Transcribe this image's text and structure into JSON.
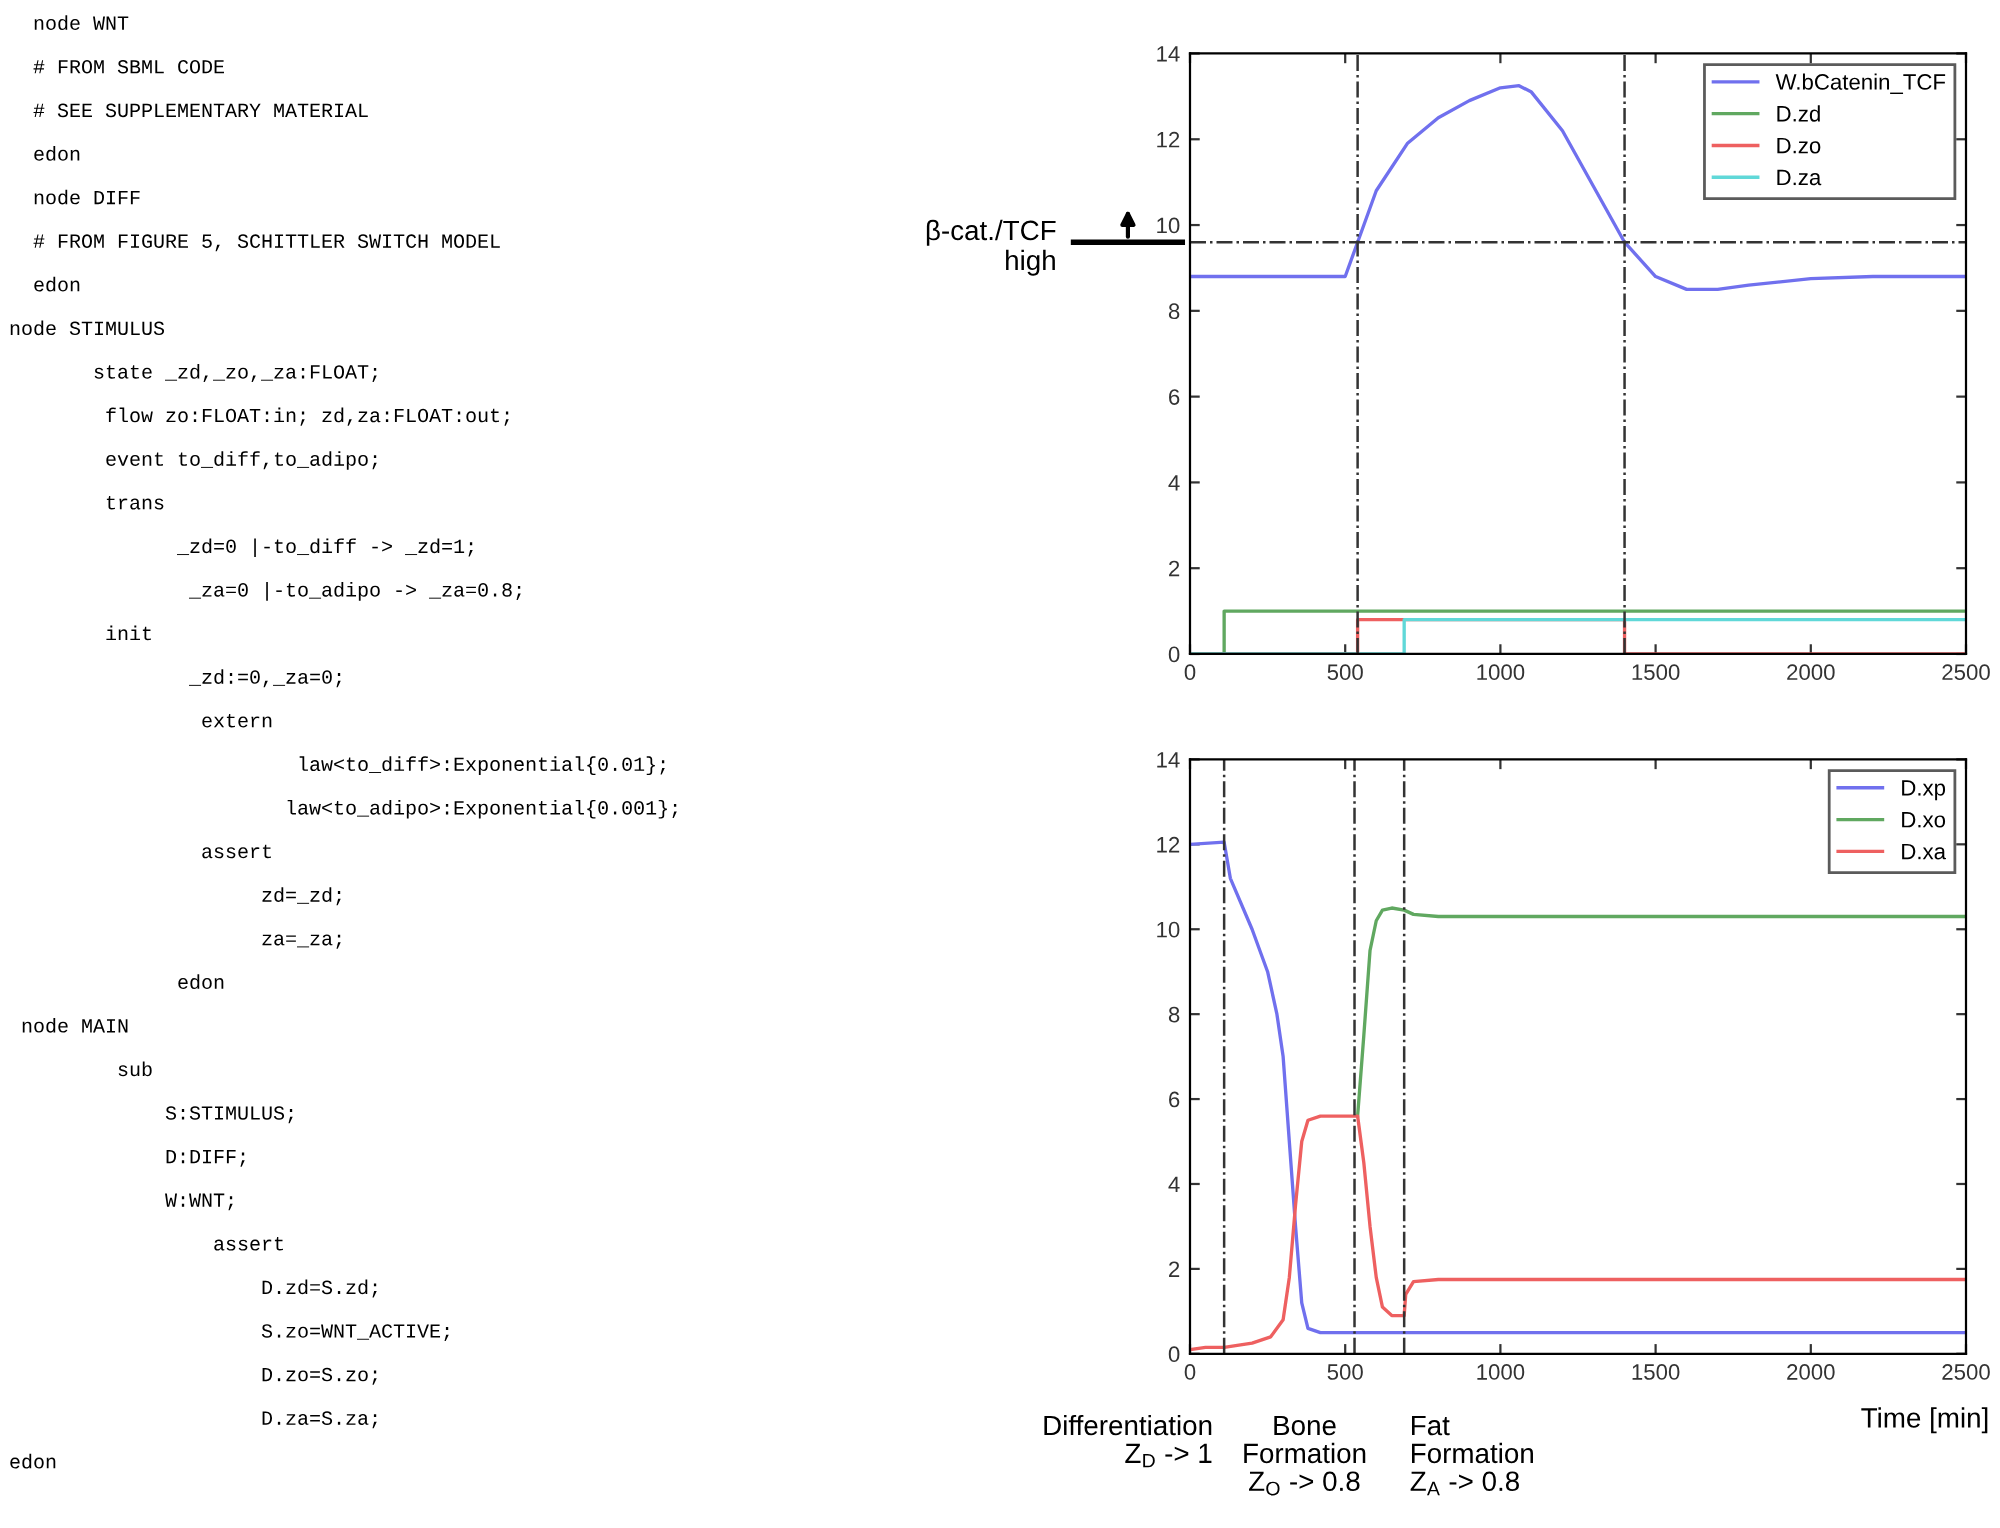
{
  "chart_data": [
    {
      "type": "other",
      "annotations": [
        "  node WNT",
        "  # FROM SBML CODE",
        "  # SEE SUPPLEMENTARY MATERIAL",
        "  edon",
        "  node DIFF",
        "  # FROM FIGURE 5, SCHITTLER SWITCH MODEL",
        "  edon",
        "node STIMULUS",
        "       state _zd,_zo,_za:FLOAT;",
        "        flow zo:FLOAT:in; zd,za:FLOAT:out;",
        "        event to_diff,to_adipo;",
        "        trans",
        "              _zd=0 |-to_diff -> _zd=1;",
        "               _za=0 |-to_adipo -> _za=0.8;",
        "        init",
        "               _zd:=0,_za=0;",
        "                extern",
        "                        law<to_diff>:Exponential{0.01};",
        "                       law<to_adipo>:Exponential{0.001};",
        "                assert",
        "                     zd=_zd;",
        "                     za=_za;",
        "              edon",
        " node MAIN",
        "         sub",
        "             S:STIMULUS;",
        "             D:DIFF;",
        "             W:WNT;",
        "                 assert",
        "                     D.zd=S.zd;",
        "                     S.zo=WNT_ACTIVE;",
        "                     D.zo=S.zo;",
        "                     D.za=S.za;",
        "edon"
      ]
    },
    {
      "type": "line",
      "xlim": [
        0,
        2500
      ],
      "ylim": [
        0,
        14
      ],
      "xticks": [
        0,
        500,
        1000,
        1500,
        2000,
        2500
      ],
      "yticks": [
        0,
        2,
        4,
        6,
        8,
        10,
        12,
        14
      ],
      "grid": false,
      "legend": "top right",
      "series": [
        {
          "name": "W.bCatenin_TCF",
          "color": "#7070ee",
          "x": [
            0,
            500,
            540,
            600,
            700,
            800,
            900,
            1000,
            1060,
            1100,
            1200,
            1300,
            1400,
            1500,
            1600,
            1700,
            1800,
            2000,
            2200,
            2500
          ],
          "values": [
            8.8,
            8.8,
            9.6,
            10.8,
            11.9,
            12.5,
            12.9,
            13.2,
            13.25,
            13.1,
            12.2,
            10.9,
            9.6,
            8.8,
            8.5,
            8.5,
            8.6,
            8.75,
            8.8,
            8.8
          ]
        },
        {
          "name": "D.zd",
          "color": "#60a860",
          "x": [
            0,
            110,
            110,
            2500
          ],
          "values": [
            0,
            0,
            1,
            1
          ]
        },
        {
          "name": "D.zo",
          "color": "#ee6060",
          "x": [
            0,
            540,
            540,
            1400,
            1400,
            2500
          ],
          "values": [
            0,
            0,
            0.8,
            0.8,
            0,
            0
          ]
        },
        {
          "name": "D.za",
          "color": "#60d8d8",
          "x": [
            0,
            690,
            690,
            2500
          ],
          "values": [
            0,
            0,
            0.8,
            0.8
          ]
        }
      ],
      "ref_lines": [
        {
          "axis": "y",
          "value": 9.6,
          "label": "β-cat./TCF\nhigh",
          "line_style": "dashdot"
        },
        {
          "axis": "x",
          "value": 540,
          "line_style": "dashdot"
        },
        {
          "axis": "x",
          "value": 1400,
          "line_style": "dashdot"
        }
      ]
    },
    {
      "type": "line",
      "xlim": [
        0,
        2500
      ],
      "ylim": [
        0,
        14
      ],
      "xticks": [
        0,
        500,
        1000,
        1500,
        2000,
        2500
      ],
      "yticks": [
        0,
        2,
        4,
        6,
        8,
        10,
        12,
        14
      ],
      "grid": false,
      "legend": "top right",
      "xlabel": "Time [min]",
      "series": [
        {
          "name": "D.xp",
          "color": "#7070ee",
          "x": [
            0,
            110,
            130,
            200,
            250,
            280,
            300,
            320,
            340,
            360,
            380,
            420,
            2500
          ],
          "values": [
            12.0,
            12.05,
            11.2,
            10.0,
            9.0,
            8.0,
            7.0,
            5.0,
            3.0,
            1.2,
            0.6,
            0.5,
            0.5
          ]
        },
        {
          "name": "D.xo",
          "color": "#60a860",
          "x": [
            540,
            560,
            580,
            600,
            620,
            650,
            690,
            720,
            800,
            2500
          ],
          "values": [
            5.6,
            7.5,
            9.5,
            10.2,
            10.45,
            10.5,
            10.45,
            10.35,
            10.3,
            10.3
          ]
        },
        {
          "name": "D.xa",
          "color": "#ee6060",
          "x": [
            0,
            50,
            110,
            200,
            260,
            300,
            320,
            340,
            360,
            380,
            420,
            540,
            560,
            580,
            600,
            620,
            650,
            690,
            695,
            720,
            800,
            2500
          ],
          "values": [
            0.1,
            0.15,
            0.15,
            0.25,
            0.4,
            0.8,
            1.8,
            3.5,
            5.0,
            5.5,
            5.6,
            5.6,
            4.5,
            3.0,
            1.8,
            1.1,
            0.9,
            0.9,
            1.4,
            1.7,
            1.75,
            1.75
          ]
        }
      ],
      "ref_lines": [
        {
          "axis": "x",
          "value": 110,
          "line_style": "dashdot"
        },
        {
          "axis": "x",
          "value": 530,
          "line_style": "dashdot"
        },
        {
          "axis": "x",
          "value": 690,
          "line_style": "dashdot"
        }
      ],
      "annotations": [
        "Differentiation\nZ$_{D}$ -> 1",
        "Bone\nFormation\nZ$_{O}$ -> 0.8",
        "Fat\nFormation\nZ$_{A}$ -> 0.8"
      ]
    }
  ]
}
